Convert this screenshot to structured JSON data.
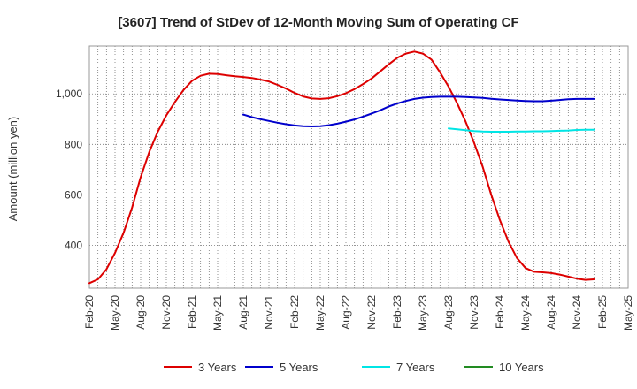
{
  "chart_data": {
    "type": "line",
    "title": "[3607]  Trend of StDev of 12-Month Moving Sum of Operating CF",
    "xlabel": "",
    "ylabel": "Amount (million yen)",
    "x": [
      "Feb-20",
      "Mar-20",
      "Apr-20",
      "May-20",
      "Jun-20",
      "Jul-20",
      "Aug-20",
      "Sep-20",
      "Oct-20",
      "Nov-20",
      "Dec-20",
      "Jan-21",
      "Feb-21",
      "Mar-21",
      "Apr-21",
      "May-21",
      "Jun-21",
      "Jul-21",
      "Aug-21",
      "Sep-21",
      "Oct-21",
      "Nov-21",
      "Dec-21",
      "Jan-22",
      "Feb-22",
      "Mar-22",
      "Apr-22",
      "May-22",
      "Jun-22",
      "Jul-22",
      "Aug-22",
      "Sep-22",
      "Oct-22",
      "Nov-22",
      "Dec-22",
      "Jan-23",
      "Feb-23",
      "Mar-23",
      "Apr-23",
      "May-23",
      "Jun-23",
      "Jul-23",
      "Aug-23",
      "Sep-23",
      "Oct-23",
      "Nov-23",
      "Dec-23",
      "Jan-24",
      "Feb-24",
      "Mar-24",
      "Apr-24",
      "May-24",
      "Jun-24",
      "Jul-24",
      "Aug-24",
      "Sep-24",
      "Oct-24",
      "Nov-24",
      "Dec-24",
      "Jan-25",
      "Feb-25",
      "Mar-25",
      "Apr-25",
      "May-25"
    ],
    "x_tick_labels": [
      "Feb-20",
      "May-20",
      "Aug-20",
      "Nov-20",
      "Feb-21",
      "May-21",
      "Aug-21",
      "Nov-21",
      "Feb-22",
      "May-22",
      "Aug-22",
      "Nov-22",
      "Feb-23",
      "May-23",
      "Aug-23",
      "Nov-23",
      "Feb-24",
      "May-24",
      "Aug-24",
      "Nov-24",
      "Feb-25",
      "May-25"
    ],
    "y_ticks": [
      400,
      600,
      800,
      1000
    ],
    "y_tick_labels": [
      "400",
      "600",
      "800",
      "1,000"
    ],
    "ylim": [
      230,
      1190
    ],
    "grid": true,
    "legend_position": "bottom",
    "series": [
      {
        "name": "3 Years",
        "color": "#dd0000",
        "values": [
          250,
          265,
          305,
          370,
          450,
          550,
          670,
          770,
          850,
          915,
          968,
          1015,
          1052,
          1072,
          1080,
          1079,
          1074,
          1070,
          1067,
          1063,
          1057,
          1049,
          1036,
          1021,
          1004,
          990,
          982,
          980,
          983,
          991,
          1003,
          1019,
          1039,
          1061,
          1089,
          1117,
          1143,
          1160,
          1168,
          1160,
          1136,
          1086,
          1029,
          963,
          890,
          805,
          710,
          600,
          500,
          415,
          350,
          310,
          295,
          293,
          290,
          284,
          276,
          268,
          263,
          265,
          null,
          null,
          null,
          null
        ]
      },
      {
        "name": "5 Years",
        "color": "#0000cc",
        "values": [
          null,
          null,
          null,
          null,
          null,
          null,
          null,
          null,
          null,
          null,
          null,
          null,
          null,
          null,
          null,
          null,
          null,
          null,
          918,
          908,
          900,
          893,
          886,
          880,
          875,
          872,
          871,
          872,
          876,
          882,
          890,
          899,
          910,
          922,
          935,
          950,
          962,
          972,
          980,
          985,
          988,
          989,
          989,
          989,
          988,
          986,
          984,
          981,
          978,
          976,
          974,
          972,
          971,
          971,
          973,
          976,
          979,
          980,
          980,
          980,
          null,
          null,
          null,
          null
        ]
      },
      {
        "name": "7 Years",
        "color": "#00e5e5",
        "values": [
          null,
          null,
          null,
          null,
          null,
          null,
          null,
          null,
          null,
          null,
          null,
          null,
          null,
          null,
          null,
          null,
          null,
          null,
          null,
          null,
          null,
          null,
          null,
          null,
          null,
          null,
          null,
          null,
          null,
          null,
          null,
          null,
          null,
          null,
          null,
          null,
          null,
          null,
          null,
          null,
          null,
          null,
          863,
          860,
          856,
          853,
          851,
          850,
          850,
          850,
          851,
          851,
          852,
          852,
          853,
          854,
          855,
          857,
          858,
          858,
          null,
          null,
          null,
          null
        ]
      },
      {
        "name": "10 Years",
        "color": "#228b22",
        "values": [
          null,
          null,
          null,
          null,
          null,
          null,
          null,
          null,
          null,
          null,
          null,
          null,
          null,
          null,
          null,
          null,
          null,
          null,
          null,
          null,
          null,
          null,
          null,
          null,
          null,
          null,
          null,
          null,
          null,
          null,
          null,
          null,
          null,
          null,
          null,
          null,
          null,
          null,
          null,
          null,
          null,
          null,
          null,
          null,
          null,
          null,
          null,
          null,
          null,
          null,
          null,
          null,
          null,
          null,
          null,
          null,
          null,
          null,
          null,
          null,
          null,
          null,
          null,
          null
        ]
      }
    ]
  }
}
